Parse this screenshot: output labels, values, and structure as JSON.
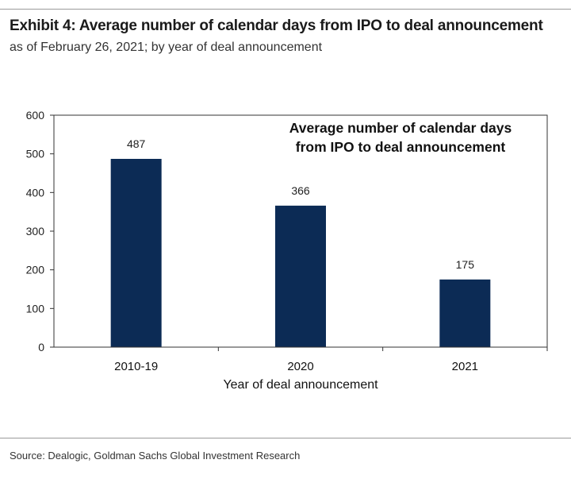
{
  "exhibit": {
    "title": "Exhibit 4: Average number of calendar days from IPO to deal announcement",
    "subtitle": "as of February 26, 2021; by year of deal announcement"
  },
  "chart_data": {
    "type": "bar",
    "categories": [
      "2010-19",
      "2020",
      "2021"
    ],
    "values": [
      487,
      366,
      175
    ],
    "data_labels": [
      "487",
      "366",
      "175"
    ],
    "title_lines": [
      "Average number of calendar days",
      "from IPO to deal announcement"
    ],
    "xlabel": "Year of deal announcement",
    "ylabel": "",
    "ylim": [
      0,
      600
    ],
    "yticks": [
      0,
      100,
      200,
      300,
      400,
      500,
      600
    ],
    "bar_color": "#0c2b55",
    "grid": false
  },
  "footer": {
    "source": "Source: Dealogic, Goldman Sachs Global Investment Research"
  }
}
